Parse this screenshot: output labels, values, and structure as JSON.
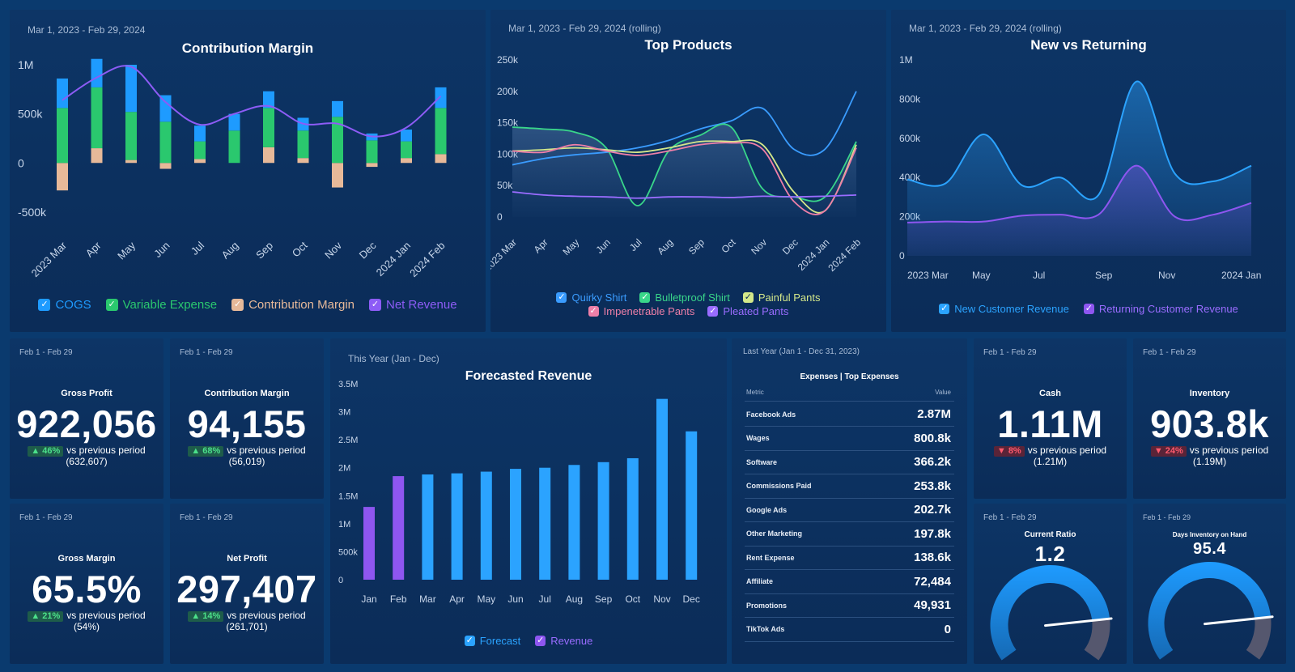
{
  "colors": {
    "cogs": "#1e9bff",
    "variable": "#2ac86e",
    "margin": "#e7b999",
    "net": "#8d5cf6",
    "blue": "#2ba3ff",
    "purple": "#8e56f0",
    "quirky": "#3a9cff",
    "bulletproof": "#39d68a",
    "painful": "#d4e88a",
    "impenetrable": "#ee7fa8",
    "pleated": "#9a6cff"
  },
  "panels": {
    "contribution": {
      "date": "Mar 1, 2023 - Feb 29, 2024",
      "title": "Contribution Margin",
      "legend": [
        "COGS",
        "Variable Expense",
        "Contribution Margin",
        "Net Revenue"
      ]
    },
    "top_products": {
      "date": "Mar 1, 2023 - Feb 29, 2024 (rolling)",
      "title": "Top Products",
      "legend": [
        "Quirky Shirt",
        "Bulletproof Shirt",
        "Painful Pants",
        "Impenetrable Pants",
        "Pleated Pants"
      ]
    },
    "new_returning": {
      "date": "Mar 1, 2023 - Feb 29, 2024 (rolling)",
      "title": "New vs Returning",
      "legend": [
        "New Customer Revenue",
        "Returning Customer Revenue"
      ]
    },
    "forecast": {
      "date": "This Year (Jan - Dec)",
      "title": "Forecasted Revenue",
      "legend": [
        "Forecast",
        "Revenue"
      ]
    },
    "expenses": {
      "date": "Last Year (Jan 1 - Dec 31, 2023)",
      "title": "Expenses | Top Expenses",
      "col_metric": "Metric",
      "col_value": "Value",
      "rows": [
        {
          "name": "Facebook Ads",
          "value": "2.87M"
        },
        {
          "name": "Wages",
          "value": "800.8k"
        },
        {
          "name": "Software",
          "value": "366.2k"
        },
        {
          "name": "Commissions Paid",
          "value": "253.8k"
        },
        {
          "name": "Google Ads",
          "value": "202.7k"
        },
        {
          "name": "Other Marketing",
          "value": "197.8k"
        },
        {
          "name": "Rent Expense",
          "value": "138.6k"
        },
        {
          "name": "Affiliate",
          "value": "72,484"
        },
        {
          "name": "Promotions",
          "value": "49,931"
        },
        {
          "name": "TikTok Ads",
          "value": "0"
        }
      ]
    }
  },
  "kpis": {
    "gross_profit": {
      "date": "Feb 1 - Feb 29",
      "label": "Gross Profit",
      "value": "922,056",
      "change": "▲ 46%",
      "vs": "vs previous period",
      "prev": "(632,607)"
    },
    "contribution_margin": {
      "date": "Feb 1 - Feb 29",
      "label": "Contribution Margin",
      "value": "94,155",
      "change": "▲ 68%",
      "vs": "vs previous period",
      "prev": "(56,019)"
    },
    "gross_margin": {
      "date": "Feb 1 - Feb 29",
      "label": "Gross Margin",
      "value": "65.5%",
      "change": "▲ 21%",
      "vs": "vs previous period",
      "prev": "(54%)"
    },
    "net_profit": {
      "date": "Feb 1 - Feb 29",
      "label": "Net Profit",
      "value": "297,407",
      "change": "▲ 14%",
      "vs": "vs previous period",
      "prev": "(261,701)"
    },
    "cash": {
      "date": "Feb 1 - Feb 29",
      "label": "Cash",
      "value": "1.11M",
      "change": "▼ 8%",
      "vs": "vs previous period",
      "prev": "(1.21M)"
    },
    "inventory": {
      "date": "Feb 1 - Feb 29",
      "label": "Inventory",
      "value": "903.8k",
      "change": "▼ 24%",
      "vs": "vs previous period",
      "prev": "(1.19M)"
    },
    "current_ratio": {
      "date": "Feb 1 - Feb 29",
      "label": "Current Ratio",
      "value": "1.2",
      "gauge_min": "0",
      "gauge_max": "1.44",
      "fraction": 0.833
    },
    "days_inventory": {
      "date": "Feb 1 - Feb 29",
      "label": "Days Inventory on Hand",
      "value": "95.4",
      "gauge_min": "0",
      "gauge_max": "114.5",
      "fraction": 0.833
    }
  },
  "chart_data": [
    {
      "type": "bar",
      "title": "Contribution Margin",
      "categories": [
        "2023 Mar",
        "Apr",
        "May",
        "Jun",
        "Jul",
        "Aug",
        "Sep",
        "Oct",
        "Nov",
        "Dec",
        "2024 Jan",
        "2024 Feb"
      ],
      "y_ticks": [
        "1M",
        "500k",
        "0",
        "-500k"
      ],
      "ylim": [
        -600000,
        1000000
      ],
      "series": [
        {
          "name": "Contribution Margin",
          "values": [
            -280000,
            150000,
            30000,
            -60000,
            40000,
            0,
            160000,
            50000,
            -250000,
            -40000,
            50000,
            90000
          ]
        },
        {
          "name": "Variable Expense",
          "values": [
            560000,
            620000,
            490000,
            420000,
            180000,
            330000,
            400000,
            280000,
            470000,
            230000,
            170000,
            470000
          ]
        },
        {
          "name": "COGS",
          "values": [
            300000,
            290000,
            480000,
            270000,
            160000,
            170000,
            170000,
            130000,
            160000,
            70000,
            120000,
            210000
          ]
        },
        {
          "name": "Net Revenue",
          "values": [
            640000,
            870000,
            980000,
            620000,
            390000,
            500000,
            580000,
            400000,
            400000,
            270000,
            360000,
            680000
          ]
        }
      ]
    },
    {
      "type": "line",
      "title": "Top Products",
      "categories": [
        "2023 Mar",
        "Apr",
        "May",
        "Jun",
        "Jul",
        "Aug",
        "Sep",
        "Oct",
        "Nov",
        "Dec",
        "2024 Jan",
        "2024 Feb"
      ],
      "y_ticks": [
        "250k",
        "200k",
        "150k",
        "100k",
        "50k",
        "0"
      ],
      "ylim": [
        0,
        250000
      ],
      "series": [
        {
          "name": "Quirky Shirt",
          "values": [
            83000,
            93000,
            99000,
            103000,
            110000,
            122000,
            140000,
            153000,
            173000,
            108000,
            108000,
            200000
          ]
        },
        {
          "name": "Bulletproof Shirt",
          "values": [
            143000,
            140000,
            135000,
            110000,
            18000,
            105000,
            130000,
            143000,
            45000,
            32000,
            32000,
            120000
          ]
        },
        {
          "name": "Painful Pants",
          "values": [
            105000,
            107000,
            110000,
            107000,
            103000,
            110000,
            120000,
            120000,
            115000,
            40000,
            10000,
            115000
          ]
        },
        {
          "name": "Impenetrable Pants",
          "values": [
            105000,
            103000,
            115000,
            105000,
            98000,
            105000,
            115000,
            118000,
            108000,
            25000,
            10000,
            110000
          ]
        },
        {
          "name": "Pleated Pants",
          "values": [
            40000,
            35000,
            33000,
            32000,
            30000,
            32000,
            32000,
            31000,
            33000,
            32000,
            33000,
            35000
          ]
        }
      ]
    },
    {
      "type": "area",
      "title": "New vs Returning",
      "x_ticks": [
        "2023 Mar",
        "May",
        "Jul",
        "Sep",
        "Nov",
        "2024 Jan"
      ],
      "y_ticks": [
        "1M",
        "800k",
        "600k",
        "400k",
        "200k",
        "0"
      ],
      "ylim": [
        0,
        1000000
      ],
      "series": [
        {
          "name": "New Customer Revenue",
          "values": [
            390000,
            370000,
            620000,
            360000,
            400000,
            310000,
            890000,
            420000,
            380000,
            460000
          ]
        },
        {
          "name": "Returning Customer Revenue",
          "values": [
            170000,
            175000,
            175000,
            205000,
            210000,
            210000,
            460000,
            200000,
            210000,
            270000
          ]
        }
      ]
    },
    {
      "type": "bar",
      "title": "Forecasted Revenue",
      "categories": [
        "Jan",
        "Feb",
        "Mar",
        "Apr",
        "May",
        "Jun",
        "Jul",
        "Aug",
        "Sep",
        "Oct",
        "Nov",
        "Dec"
      ],
      "y_ticks": [
        "3.5M",
        "3M",
        "2.5M",
        "2M",
        "1.5M",
        "1M",
        "500k",
        "0"
      ],
      "ylim": [
        0,
        3500000
      ],
      "series": [
        {
          "name": "Revenue",
          "values": [
            1300000,
            1850000,
            null,
            null,
            null,
            null,
            null,
            null,
            null,
            null,
            null,
            null
          ]
        },
        {
          "name": "Forecast",
          "values": [
            null,
            null,
            1880000,
            1900000,
            1930000,
            1980000,
            2000000,
            2050000,
            2100000,
            2170000,
            3230000,
            2650000
          ]
        }
      ]
    }
  ]
}
